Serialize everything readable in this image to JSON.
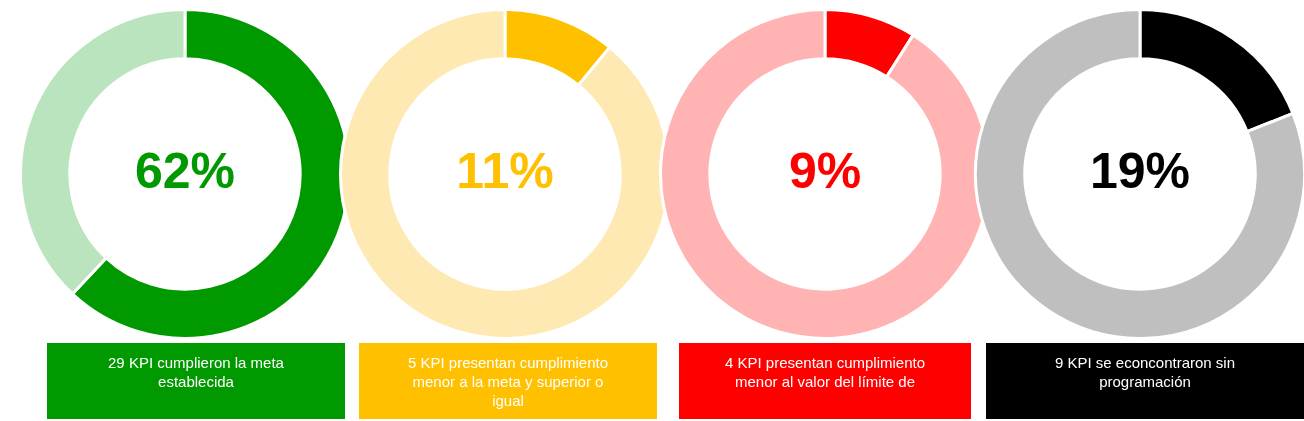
{
  "chart_data": [
    {
      "type": "donut",
      "categories": [
        null,
        null
      ],
      "values": [
        62,
        38
      ],
      "colors": [
        "#009900",
        "#b9e4bd"
      ],
      "annotations": [
        "62%",
        "29  KPI cumplieron la meta establecida"
      ]
    },
    {
      "type": "donut",
      "categories": [
        null,
        null
      ],
      "values": [
        11,
        89
      ],
      "colors": [
        "#ffc000",
        "#ffe9b3"
      ],
      "annotations": [
        "11%",
        "5 KPI presentan cumplimiento menor a la meta y superior o igual"
      ]
    },
    {
      "type": "donut",
      "categories": [
        null,
        null
      ],
      "values": [
        9,
        91
      ],
      "colors": [
        "#ff0000",
        "#ffb3b3"
      ],
      "annotations": [
        "9%",
        "4 KPI presentan cumplimiento menor al valor del límite de"
      ]
    },
    {
      "type": "donut",
      "categories": [
        null,
        null
      ],
      "values": [
        19,
        81
      ],
      "colors": [
        "#000000",
        "#bfbfbf"
      ],
      "annotations": [
        "19%",
        "9 KPI se econcontraron sin programación"
      ]
    }
  ]
}
